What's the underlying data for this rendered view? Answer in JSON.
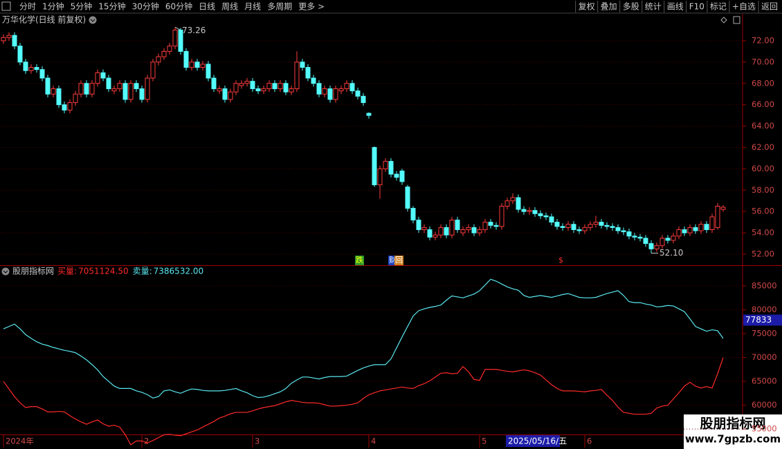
{
  "toolbar": {
    "left": [
      "分时",
      "1分钟",
      "5分钟",
      "15分钟",
      "30分钟",
      "60分钟",
      "日线",
      "周线",
      "月线",
      "多周期",
      "更多 >"
    ],
    "right": [
      "复权",
      "叠加",
      "多股",
      "统计",
      "画线",
      "F10",
      "标记",
      "+自选",
      "返回"
    ]
  },
  "watermark": {
    "title": "股朋指标网",
    "url": "www.7gpzb.com"
  },
  "chart_data": [
    {
      "type": "candlestick",
      "title": "万华化学(日线 前复权)",
      "categories": [
        "2024年",
        null,
        null,
        null,
        null,
        null,
        null,
        null,
        null,
        null,
        null,
        null,
        null,
        null,
        null,
        null,
        null,
        null,
        null,
        null,
        null,
        null,
        null,
        null,
        null,
        "2",
        null,
        null,
        null,
        null,
        null,
        null,
        null,
        null,
        null,
        null,
        null,
        null,
        null,
        null,
        null,
        null,
        null,
        null,
        null,
        "3",
        null,
        null,
        null,
        null,
        null,
        null,
        null,
        null,
        null,
        null,
        null,
        null,
        null,
        null,
        null,
        null,
        null,
        null,
        null,
        null,
        "4",
        null,
        null,
        null,
        null,
        null,
        null,
        null,
        null,
        null,
        null,
        null,
        null,
        null,
        null,
        null,
        null,
        null,
        null,
        null,
        "5",
        null,
        null,
        null,
        null,
        null,
        null,
        null,
        null,
        null,
        null,
        null,
        null,
        null,
        null,
        null,
        null,
        null,
        null,
        "6",
        null,
        null,
        null,
        null,
        null,
        null,
        null,
        null,
        null,
        null,
        null,
        null,
        null,
        null,
        null,
        null,
        null,
        null,
        null,
        null,
        null,
        null,
        null,
        null,
        null
      ],
      "open": [
        72.0,
        72.3,
        72.5,
        71.5,
        70,
        69.2,
        69.5,
        69.3,
        68.5,
        67,
        67.5,
        66,
        65.5,
        66.2,
        67,
        68,
        67,
        68,
        69,
        68.5,
        67.3,
        67.5,
        68,
        66.5,
        68,
        67.5,
        66.5,
        68.5,
        70,
        70.5,
        71,
        71.5,
        73,
        71,
        69.5,
        70,
        69.5,
        69.8,
        68.5,
        67.3,
        67.5,
        66.5,
        67.2,
        67.8,
        68,
        68.2,
        67.5,
        67.3,
        67.5,
        68,
        67.5,
        68,
        67.2,
        67.5,
        70,
        69.5,
        68.5,
        68,
        67,
        67.5,
        66.5,
        67.3,
        67.5,
        68,
        67.3,
        66.8,
        65.2,
        62,
        58.5,
        60,
        60.7,
        59.5,
        59.8,
        58.3,
        56.3,
        55.2,
        54.3,
        54.3,
        53.6,
        53.8,
        54.5,
        53.8,
        55.2,
        54.0,
        54.3,
        54.5,
        54,
        54.3,
        55,
        54.7,
        54.6,
        56.5,
        57,
        57.3,
        56.2,
        56,
        56.1,
        55.8,
        55.6,
        55.5,
        55,
        54.6,
        54.5,
        54.8,
        54.3,
        54.2,
        54.5,
        54.8,
        55,
        54.7,
        54.6,
        54.5,
        54.2,
        54.1,
        53.7,
        53.6,
        53.5,
        53,
        52.5,
        52.8,
        53.5,
        53.3,
        53.7,
        54.3,
        54,
        54.5,
        54.2,
        54.8,
        54.3,
        54.5,
        56.2
      ],
      "high": [
        72.6,
        72.8,
        72.8,
        71.8,
        70.3,
        69.8,
        69.8,
        69.6,
        68.8,
        67.8,
        67.8,
        66.3,
        66.5,
        67.3,
        68.3,
        68.3,
        68.3,
        69.3,
        69.3,
        68.8,
        67.8,
        68.3,
        68.3,
        68.3,
        68.3,
        67.8,
        68.8,
        70.3,
        70.8,
        71.3,
        71.8,
        73.26,
        73.2,
        71.3,
        70.3,
        70.3,
        70.1,
        70.1,
        68.8,
        67.8,
        67.8,
        67.5,
        68.3,
        68.3,
        68.5,
        68.5,
        67.8,
        67.8,
        68.3,
        68.3,
        68.3,
        68.3,
        67.8,
        71,
        70.3,
        69.8,
        68.8,
        68.3,
        67.8,
        67.8,
        67.8,
        67.8,
        68.3,
        68.3,
        67.6,
        67.1,
        65.3,
        62.1,
        60.3,
        61,
        61,
        59.8,
        60,
        58.5,
        56.5,
        55.5,
        54.8,
        54.6,
        54.1,
        54.8,
        54.8,
        55.5,
        55.5,
        54.6,
        54.8,
        54.8,
        54.6,
        55.3,
        55.3,
        55,
        56.8,
        57.3,
        57.7,
        57.6,
        56.5,
        56.4,
        56.4,
        56.1,
        55.9,
        55.8,
        55.3,
        54.9,
        55.1,
        55.1,
        54.6,
        54.8,
        55.1,
        55.6,
        55.3,
        55,
        54.9,
        54.8,
        54.5,
        54.4,
        54,
        53.9,
        53.8,
        53.3,
        53.1,
        53.8,
        53.8,
        54,
        54.6,
        54.6,
        54.8,
        54.8,
        55.1,
        55.1,
        55.8,
        56.8,
        56.6
      ],
      "low": [
        71.7,
        72,
        71.2,
        69.7,
        68.9,
        68.9,
        69,
        68.2,
        66.7,
        66.7,
        65.7,
        65.2,
        65.2,
        65.9,
        66.7,
        66.7,
        66.7,
        67.7,
        68.2,
        67.2,
        67,
        67.2,
        66.2,
        66.2,
        67.2,
        66.2,
        66.2,
        68.2,
        69.7,
        70.2,
        70.7,
        71.2,
        70.7,
        69.2,
        69.2,
        69.2,
        69.2,
        68.2,
        67.2,
        67,
        66.2,
        66.2,
        66.9,
        67.5,
        67.7,
        67.2,
        67,
        67,
        67.2,
        67.2,
        67.2,
        66.9,
        66.9,
        67.2,
        69.2,
        68.2,
        67.7,
        66.7,
        66.7,
        66.2,
        66.2,
        67,
        67.2,
        67,
        66.5,
        65.9,
        64.7,
        58.3,
        57.2,
        59.7,
        59.2,
        58.9,
        58.5,
        56,
        54.9,
        54,
        54,
        53.3,
        53.3,
        53.5,
        53.5,
        53.5,
        54,
        53.7,
        54,
        53.7,
        53.7,
        54,
        54.4,
        54.3,
        54.3,
        56.2,
        56.7,
        55.9,
        55.7,
        55.7,
        55.5,
        55.3,
        55.2,
        54.7,
        54.3,
        54.2,
        54.2,
        54,
        53.9,
        53.9,
        54.2,
        54.5,
        54.4,
        54.3,
        54.2,
        53.9,
        53.8,
        53.4,
        53.3,
        53.2,
        52.7,
        52.1,
        52.2,
        52.5,
        53,
        53,
        53.4,
        53.7,
        53.7,
        53.9,
        53.9,
        54,
        54,
        54.3,
        56
      ],
      "close": [
        72.3,
        72.5,
        71.5,
        70,
        69.2,
        69.5,
        69.3,
        68.5,
        67,
        67.5,
        66,
        65.5,
        66.2,
        67,
        68,
        67,
        68,
        69,
        68.5,
        67.5,
        67.5,
        68,
        66.5,
        68,
        67.5,
        66.5,
        68.5,
        70,
        70.5,
        71,
        71.5,
        73,
        71,
        69.5,
        70,
        69.5,
        69.8,
        68.5,
        67.5,
        67.5,
        66.5,
        67.2,
        68,
        68,
        68.2,
        67.5,
        67.3,
        67.5,
        68,
        67.5,
        68,
        67.2,
        67.5,
        70,
        69.5,
        68.5,
        68,
        67,
        67.5,
        66.5,
        67.5,
        67.5,
        68,
        67.3,
        66.8,
        66.2,
        65,
        58.5,
        60,
        60.7,
        59.5,
        59.2,
        58.8,
        56.3,
        55.2,
        54.3,
        54.5,
        53.6,
        53.8,
        54.5,
        53.8,
        55.2,
        54.3,
        54.3,
        54.5,
        54.0,
        54.3,
        55,
        54.7,
        54.6,
        56.5,
        57,
        57.3,
        56.2,
        56,
        56.1,
        55.8,
        55.6,
        55.5,
        55,
        54.6,
        54.5,
        54.8,
        54.3,
        54.2,
        54.5,
        54.8,
        55,
        54.7,
        54.6,
        54.5,
        54.2,
        54.1,
        53.7,
        53.6,
        53.5,
        53,
        52.5,
        52.8,
        53.5,
        53.3,
        53.7,
        54.3,
        54,
        54.5,
        54.2,
        54.8,
        54.3,
        55.5,
        56.5,
        56.4
      ],
      "up_color": "#ff3c3c",
      "down_color": "#54fcfc",
      "ylim": [
        51.03,
        74.52
      ],
      "yticks": [
        {
          "value": 52,
          "label": "52.00"
        },
        {
          "value": 54,
          "label": "54.00"
        },
        {
          "value": 56,
          "label": "56.00"
        },
        {
          "value": 58,
          "label": "58.00"
        },
        {
          "value": 60,
          "label": "60.00"
        },
        {
          "value": 62,
          "label": "62.00"
        },
        {
          "value": 64,
          "label": "64.00"
        },
        {
          "value": 66,
          "label": "66.00"
        },
        {
          "value": 68,
          "label": "68.00"
        },
        {
          "value": 70,
          "label": "70.00"
        },
        {
          "value": 72,
          "label": "72.00"
        }
      ],
      "grid": true,
      "max_label": 73.26,
      "min_label": {
        "value": 52.1,
        "label": "52.10"
      },
      "events": [
        "跌",
        "财",
        "回",
        "$"
      ]
    },
    {
      "type": "line",
      "title": "股朋指标网",
      "series": [
        {
          "name": "买量:",
          "readout": {
            "value": 7051124.5,
            "label": "7051124.50"
          },
          "color": "#ff2a2a",
          "values": [
            65000,
            63400,
            61800,
            60500,
            59500,
            59700,
            59700,
            59200,
            58600,
            58600,
            58700,
            58600,
            57800,
            57100,
            56500,
            56000,
            56500,
            56900,
            56100,
            55600,
            55800,
            55400,
            53800,
            51700,
            52500,
            52500,
            52100,
            52600,
            53200,
            53800,
            53900,
            53700,
            53600,
            54000,
            54400,
            54800,
            55400,
            56000,
            56600,
            57300,
            57700,
            58200,
            58500,
            58500,
            58500,
            58800,
            59200,
            59500,
            59700,
            59900,
            60300,
            60700,
            61000,
            60800,
            60600,
            60500,
            60500,
            60400,
            60100,
            59800,
            59800,
            59900,
            60000,
            60200,
            60500,
            61400,
            62200,
            62600,
            63000,
            63200,
            63400,
            63600,
            63800,
            63600,
            63500,
            64100,
            64500,
            65100,
            65900,
            66700,
            66800,
            66600,
            66700,
            68100,
            67000,
            65400,
            65200,
            67500,
            67500,
            67500,
            67300,
            67100,
            67000,
            67200,
            67400,
            67200,
            66800,
            66300,
            65300,
            64300,
            63500,
            63000,
            63000,
            63000,
            62900,
            62800,
            63000,
            63100,
            63300,
            62100,
            61000,
            59600,
            58500,
            58300,
            58100,
            58100,
            58100,
            58300,
            59400,
            59800,
            60000,
            61300,
            62600,
            64000,
            64800,
            64000,
            63600,
            63900,
            63600,
            66600,
            70000
          ]
        },
        {
          "name": "卖量:",
          "readout": {
            "value": 7386532,
            "label": "7386532.00"
          },
          "color": "#5ae8f0",
          "values": [
            76000,
            76500,
            77000,
            76000,
            74800,
            74000,
            73300,
            72800,
            72500,
            72100,
            71800,
            71500,
            71300,
            71000,
            70300,
            69500,
            68500,
            67400,
            66000,
            65000,
            64000,
            63500,
            63500,
            63500,
            63000,
            62700,
            62200,
            61500,
            61800,
            63000,
            63200,
            62800,
            62500,
            63000,
            63400,
            63300,
            63100,
            63000,
            63000,
            63000,
            63100,
            63300,
            63500,
            63000,
            62600,
            62000,
            61600,
            61700,
            62000,
            62400,
            62800,
            63500,
            64600,
            65300,
            65900,
            65900,
            65700,
            65500,
            65800,
            66000,
            66000,
            66000,
            66100,
            66700,
            67300,
            67800,
            68200,
            68500,
            68500,
            68500,
            69700,
            72000,
            74300,
            76500,
            78700,
            79800,
            80200,
            80500,
            80700,
            81000,
            82000,
            82900,
            82700,
            82500,
            82900,
            83300,
            84000,
            85200,
            86400,
            86000,
            85400,
            84800,
            84400,
            84100,
            83000,
            82600,
            82800,
            83000,
            82800,
            82600,
            82900,
            83200,
            83400,
            83000,
            82600,
            82500,
            82500,
            82600,
            83000,
            83400,
            83700,
            84000,
            83000,
            81700,
            81500,
            81500,
            81200,
            81000,
            80600,
            80700,
            80900,
            80800,
            80200,
            79600,
            78100,
            76500,
            76000,
            75500,
            75800,
            75600,
            74000
          ]
        }
      ],
      "ylim": [
        54000,
        88900
      ],
      "yticks": [
        55000,
        60000,
        65000,
        70000,
        75000,
        80000,
        85000
      ],
      "grid": true,
      "cursor": {
        "date": "2025/05/16/五",
        "value": 77833
      }
    }
  ]
}
